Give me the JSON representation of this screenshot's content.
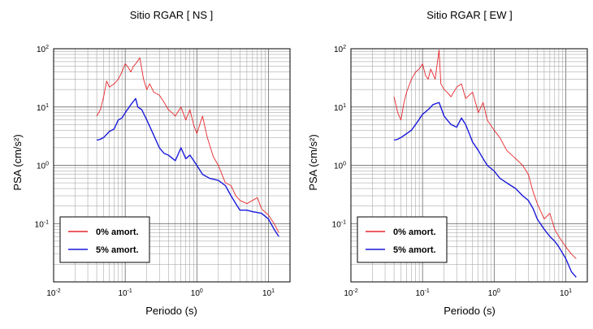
{
  "chart_data": [
    {
      "type": "line",
      "title": "Sitio RGAR [ NS ]",
      "xlabel": "Periodo (s)",
      "ylabel": "PSA (cm/s²)",
      "xscale": "log",
      "yscale": "log",
      "xlim": [
        0.01,
        20
      ],
      "ylim": [
        0.01,
        100
      ],
      "grid": true,
      "legend_position": "bottom-left",
      "x_tick_labels": [
        "10-2",
        "10-1",
        "100",
        "101"
      ],
      "y_tick_labels": [
        "10-1",
        "100",
        "101",
        "102"
      ],
      "series": [
        {
          "name": "0% amort.",
          "color": "#e8262b",
          "x": [
            0.04,
            0.045,
            0.05,
            0.055,
            0.06,
            0.07,
            0.08,
            0.09,
            0.1,
            0.11,
            0.12,
            0.13,
            0.14,
            0.16,
            0.18,
            0.2,
            0.22,
            0.25,
            0.3,
            0.35,
            0.4,
            0.45,
            0.5,
            0.6,
            0.7,
            0.8,
            0.9,
            1.0,
            1.2,
            1.4,
            1.7,
            2.0,
            2.5,
            3.0,
            3.5,
            4.0,
            5.0,
            6.0,
            7.0,
            8.0,
            10.0,
            12.0,
            14.0
          ],
          "values": [
            7,
            9,
            15,
            28,
            22,
            25,
            30,
            40,
            55,
            48,
            40,
            50,
            55,
            70,
            30,
            20,
            25,
            18,
            16,
            12,
            9,
            8,
            7,
            10,
            6,
            9,
            5,
            3.5,
            7,
            3,
            1.4,
            1.0,
            0.5,
            0.45,
            0.3,
            0.25,
            0.22,
            0.25,
            0.28,
            0.18,
            0.14,
            0.1,
            0.07
          ]
        },
        {
          "name": "5% amort.",
          "color": "#1a1adc",
          "x": [
            0.04,
            0.045,
            0.05,
            0.06,
            0.07,
            0.08,
            0.09,
            0.1,
            0.12,
            0.14,
            0.15,
            0.17,
            0.2,
            0.25,
            0.3,
            0.35,
            0.4,
            0.5,
            0.6,
            0.7,
            0.8,
            1.0,
            1.2,
            1.5,
            2.0,
            2.5,
            3.0,
            3.5,
            4.0,
            5.0,
            6.0,
            8.0,
            10.0,
            12.0,
            14.0
          ],
          "values": [
            2.7,
            2.8,
            3.0,
            3.8,
            4.2,
            6.0,
            6.5,
            8.0,
            11.0,
            14.0,
            10.0,
            9.0,
            6.0,
            3.3,
            2.0,
            1.6,
            1.5,
            1.2,
            2.0,
            1.3,
            1.5,
            1.0,
            0.7,
            0.6,
            0.55,
            0.45,
            0.3,
            0.22,
            0.17,
            0.17,
            0.16,
            0.15,
            0.12,
            0.08,
            0.06
          ]
        }
      ]
    },
    {
      "type": "line",
      "title": "Sitio RGAR [ EW ]",
      "xlabel": "Periodo (s)",
      "ylabel": "PSA (cm/s²)",
      "xscale": "log",
      "yscale": "log",
      "xlim": [
        0.01,
        20
      ],
      "ylim": [
        0.01,
        100
      ],
      "grid": true,
      "legend_position": "bottom-left",
      "x_tick_labels": [
        "10-2",
        "10-1",
        "100",
        "101"
      ],
      "y_tick_labels": [
        "10-1",
        "100",
        "101",
        "102"
      ],
      "series": [
        {
          "name": "0% amort.",
          "color": "#e8262b",
          "x": [
            0.04,
            0.045,
            0.05,
            0.055,
            0.06,
            0.07,
            0.08,
            0.09,
            0.1,
            0.11,
            0.12,
            0.13,
            0.15,
            0.17,
            0.18,
            0.2,
            0.22,
            0.25,
            0.3,
            0.35,
            0.4,
            0.5,
            0.6,
            0.7,
            0.8,
            1.0,
            1.2,
            1.5,
            2.0,
            2.5,
            3.0,
            3.5,
            4.0,
            5.0,
            6.0,
            7.0,
            8.0,
            10.0,
            12.0,
            14.0
          ],
          "values": [
            15,
            8,
            6,
            12,
            18,
            30,
            40,
            45,
            55,
            35,
            30,
            45,
            30,
            95,
            25,
            20,
            18,
            15,
            22,
            25,
            14,
            18,
            8,
            12,
            6,
            4,
            3,
            1.8,
            1.3,
            1.0,
            0.7,
            0.35,
            0.22,
            0.12,
            0.15,
            0.08,
            0.06,
            0.04,
            0.03,
            0.025
          ]
        },
        {
          "name": "5% amort.",
          "color": "#1a1adc",
          "x": [
            0.04,
            0.045,
            0.05,
            0.06,
            0.07,
            0.08,
            0.1,
            0.12,
            0.14,
            0.17,
            0.2,
            0.25,
            0.3,
            0.35,
            0.4,
            0.5,
            0.6,
            0.7,
            0.8,
            1.0,
            1.2,
            1.5,
            2.0,
            2.5,
            3.0,
            3.5,
            4.0,
            5.0,
            6.0,
            7.0,
            8.0,
            10.0,
            12.0,
            14.0
          ],
          "values": [
            2.7,
            2.8,
            3.0,
            3.5,
            4.0,
            5.0,
            7.5,
            9.0,
            11.0,
            12.0,
            7.0,
            5.0,
            4.5,
            6.5,
            5.0,
            2.5,
            1.8,
            1.3,
            1.0,
            0.8,
            0.6,
            0.5,
            0.4,
            0.3,
            0.25,
            0.18,
            0.12,
            0.08,
            0.06,
            0.05,
            0.04,
            0.025,
            0.015,
            0.012
          ]
        }
      ]
    }
  ]
}
